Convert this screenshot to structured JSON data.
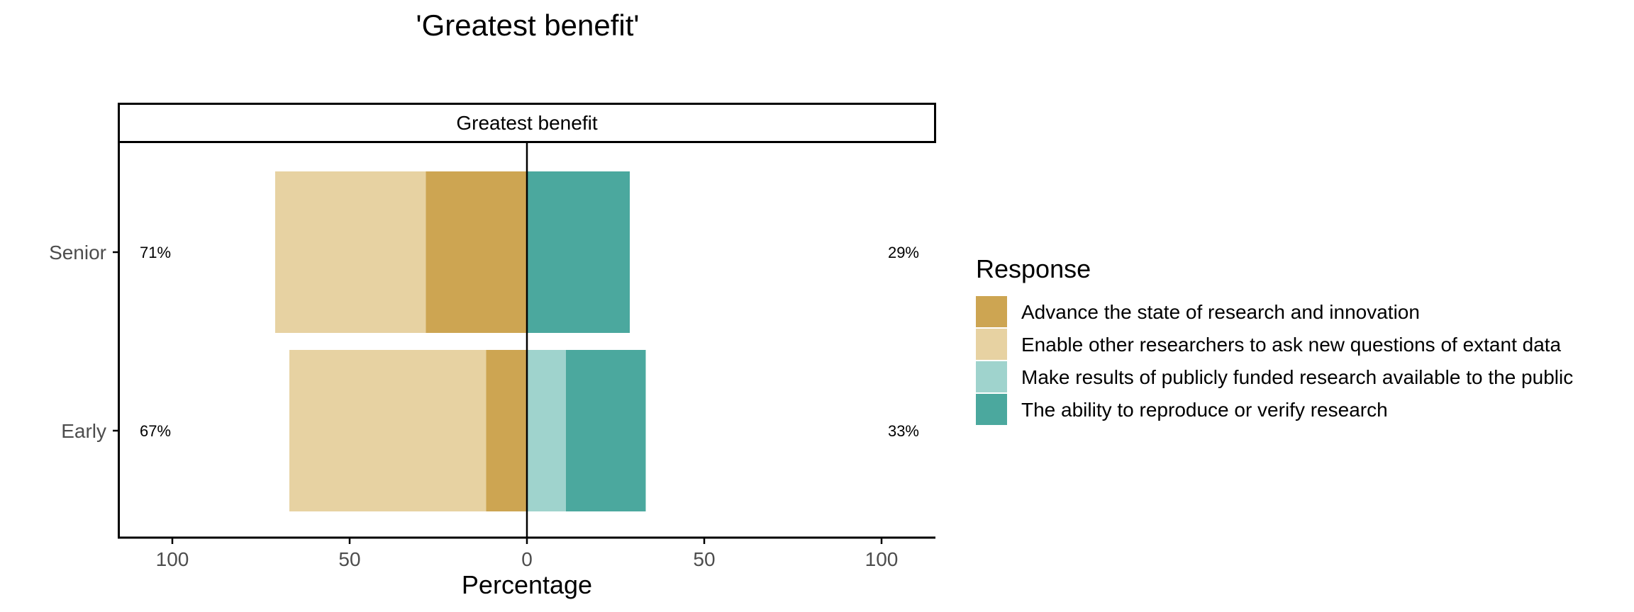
{
  "chart_data": {
    "type": "bar",
    "orientation": "horizontal-diverging",
    "title": "'Greatest benefit'",
    "facet_label": "Greatest benefit",
    "xlabel": "Percentage",
    "ylabel": "",
    "xlim": [
      -115,
      115
    ],
    "x_ticks": [
      -100,
      -50,
      0,
      50,
      100
    ],
    "x_tick_labels": [
      "100",
      "50",
      "0",
      "50",
      "100"
    ],
    "categories": [
      "Senior",
      "Early"
    ],
    "legend_title": "Response",
    "legend_position": "right",
    "grid": false,
    "series": [
      {
        "name": "Advance the state of research and innovation",
        "side": "negative",
        "color": "#CDA552",
        "values": [
          28.5,
          11.5
        ]
      },
      {
        "name": "Enable other researchers to ask new questions of extant data",
        "side": "negative",
        "color": "#E7D2A2",
        "values": [
          42.5,
          55.5
        ]
      },
      {
        "name": "Make results of publicly funded research available to the public",
        "side": "positive",
        "color": "#9FD3CD",
        "values": [
          0,
          11
        ]
      },
      {
        "name": "The ability to reproduce or verify research",
        "side": "positive",
        "color": "#4BA89E",
        "values": [
          29,
          22.5
        ]
      }
    ],
    "left_totals": [
      "71%",
      "67%"
    ],
    "right_totals": [
      "29%",
      "33%"
    ]
  }
}
